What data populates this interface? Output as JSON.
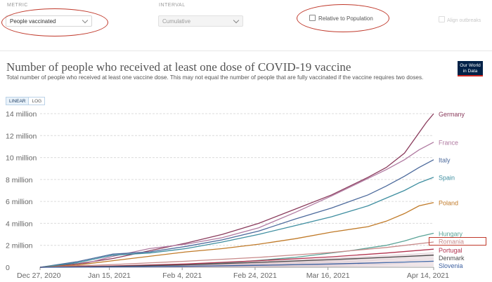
{
  "controls": {
    "metric_label": "METRIC",
    "metric_value": "People vaccinated",
    "interval_label": "INTERVAL",
    "interval_value": "Cumulative",
    "relative_label": "Relative to Population",
    "align_label": "Align outbreaks"
  },
  "logo": {
    "line1": "Our World",
    "line2": "in Data"
  },
  "scale_toggle": {
    "linear": "LINEAR",
    "log": "LOG",
    "active": "linear"
  },
  "annotation_color": "#c0392b",
  "chart_data": {
    "type": "line",
    "title": "Number of people who received at least one dose of COVID-19 vaccine",
    "subtitle": "Total number of people who received at least one vaccine dose. This may not equal the number of people that are fully vaccinated if the vaccine requires two doses.",
    "x_ticks": [
      "Dec 27, 2020",
      "Jan 15, 2021",
      "Feb 4, 2021",
      "Feb 24, 2021",
      "Mar 16, 2021",
      "Apr 14, 2021"
    ],
    "x_tick_days": [
      0,
      19,
      39,
      59,
      79,
      108
    ],
    "xlim_days": [
      0,
      108
    ],
    "y_ticks": [
      "0",
      "2 million",
      "4 million",
      "6 million",
      "8 million",
      "10 million",
      "12 million",
      "14 million"
    ],
    "ylim": [
      0,
      14000000
    ],
    "grid": true,
    "series": [
      {
        "name": "Germany",
        "color": "#8a3b5c",
        "x": [
          0,
          10,
          20,
          30,
          40,
          50,
          60,
          70,
          80,
          90,
          95,
          100,
          103,
          106,
          108
        ],
        "values": [
          0,
          300000,
          800000,
          1500000,
          2200000,
          3000000,
          4000000,
          5300000,
          6600000,
          8200000,
          9100000,
          10400000,
          11800000,
          13200000,
          14000000
        ]
      },
      {
        "name": "France",
        "color": "#b07aa1",
        "x": [
          0,
          10,
          20,
          30,
          40,
          50,
          60,
          70,
          80,
          90,
          95,
          100,
          104,
          108
        ],
        "values": [
          0,
          150000,
          1000000,
          1700000,
          2100000,
          2700000,
          3600000,
          5000000,
          6500000,
          8100000,
          8900000,
          9800000,
          10700000,
          11400000
        ]
      },
      {
        "name": "Italy",
        "color": "#4c6a9c",
        "x": [
          0,
          10,
          20,
          30,
          40,
          50,
          60,
          70,
          80,
          90,
          95,
          100,
          104,
          108
        ],
        "values": [
          0,
          500000,
          1200000,
          1400000,
          1900000,
          2500000,
          3300000,
          4400000,
          5400000,
          6600000,
          7400000,
          8300000,
          9100000,
          9800000
        ]
      },
      {
        "name": "Spain",
        "color": "#3e8ea0",
        "x": [
          0,
          10,
          20,
          30,
          40,
          50,
          60,
          70,
          80,
          90,
          95,
          100,
          104,
          108
        ],
        "values": [
          0,
          400000,
          1100000,
          1300000,
          1700000,
          2300000,
          3000000,
          3800000,
          4600000,
          5600000,
          6300000,
          7000000,
          7700000,
          8200000
        ]
      },
      {
        "name": "Poland",
        "color": "#c07a28",
        "x": [
          0,
          10,
          20,
          30,
          40,
          50,
          60,
          70,
          80,
          90,
          95,
          100,
          104,
          108
        ],
        "values": [
          0,
          200000,
          600000,
          1000000,
          1400000,
          1700000,
          2100000,
          2600000,
          3200000,
          3700000,
          4200000,
          4900000,
          5600000,
          5900000
        ]
      },
      {
        "name": "Hungary",
        "color": "#5aa397",
        "x": [
          0,
          20,
          40,
          55,
          70,
          85,
          95,
          100,
          104,
          108
        ],
        "values": [
          0,
          80000,
          250000,
          500000,
          900000,
          1500000,
          2000000,
          2400000,
          2800000,
          3100000
        ]
      },
      {
        "name": "Romania",
        "color": "#c88a8a",
        "x": [
          0,
          20,
          40,
          60,
          80,
          95,
          108
        ],
        "values": [
          0,
          250000,
          550000,
          900000,
          1350000,
          1800000,
          2300000
        ]
      },
      {
        "name": "Portugal",
        "color": "#b2334f",
        "x": [
          0,
          20,
          40,
          60,
          80,
          95,
          108
        ],
        "values": [
          0,
          120000,
          300000,
          600000,
          950000,
          1300000,
          1650000
        ]
      },
      {
        "name": "Denmark",
        "color": "#4d4d4d",
        "x": [
          0,
          20,
          40,
          60,
          80,
          95,
          108
        ],
        "values": [
          0,
          80000,
          220000,
          450000,
          700000,
          900000,
          1100000
        ]
      },
      {
        "name": "Slovenia",
        "color": "#3b5fa0",
        "x": [
          0,
          20,
          40,
          60,
          80,
          95,
          108
        ],
        "values": [
          0,
          30000,
          90000,
          180000,
          300000,
          420000,
          550000
        ]
      }
    ],
    "background_series": {
      "color": "#d2b7c0",
      "count": 10
    },
    "legend_labels": [
      {
        "name": "Germany",
        "value": 14000000
      },
      {
        "name": "France",
        "value": 11400000
      },
      {
        "name": "Italy",
        "value": 9800000
      },
      {
        "name": "Spain",
        "value": 8200000
      },
      {
        "name": "Poland",
        "value": 5900000
      },
      {
        "name": "Hungary",
        "value": 3100000
      },
      {
        "name": "Romania",
        "value": 2400000
      },
      {
        "name": "Portugal",
        "value": 1600000
      },
      {
        "name": "Denmark",
        "value": 900000
      },
      {
        "name": "Slovenia",
        "value": 200000
      }
    ]
  }
}
